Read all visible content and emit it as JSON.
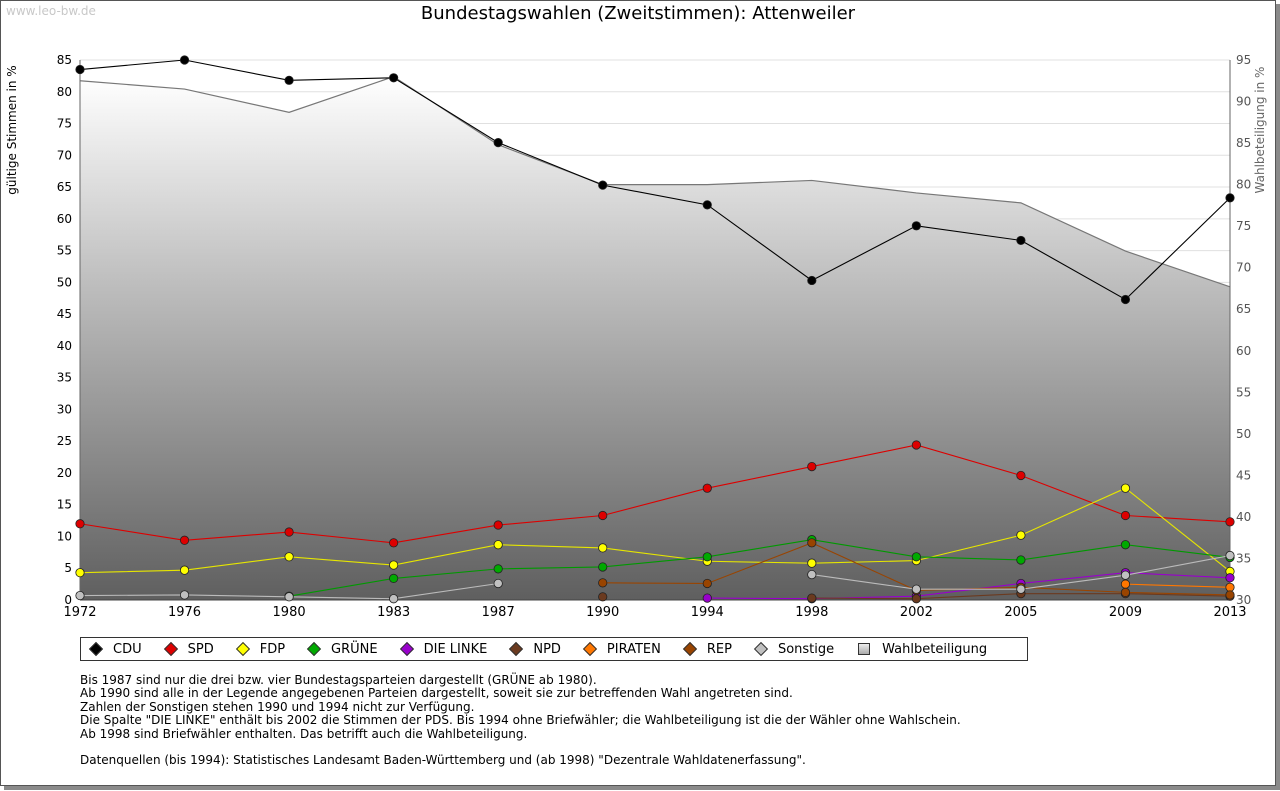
{
  "site": "www.leo-bw.de",
  "chart_data": {
    "type": "line",
    "title": "Bundestagswahlen (Zweitstimmen): Attenweiler",
    "ylabel": "gültige Stimmen in %",
    "y2label": "Wahlbeteiligung in %",
    "ylim": [
      0,
      85
    ],
    "y2lim": [
      30,
      95
    ],
    "yticks": [
      0,
      5,
      10,
      15,
      20,
      25,
      30,
      35,
      40,
      45,
      50,
      55,
      60,
      65,
      70,
      75,
      80,
      85
    ],
    "y2ticks": [
      30,
      35,
      40,
      45,
      50,
      55,
      60,
      65,
      70,
      75,
      80,
      85,
      90,
      95
    ],
    "categories": [
      "1972",
      "1976",
      "1980",
      "1983",
      "1987",
      "1990",
      "1994",
      "1998",
      "2002",
      "2005",
      "2009",
      "2013"
    ],
    "turnout": {
      "name": "Wahlbeteiligung",
      "color": "#aaaaaa",
      "values": [
        92.5,
        91.5,
        88.7,
        93.0,
        84.8,
        80.0,
        80.0,
        80.5,
        79.0,
        77.8,
        72.0,
        67.7
      ]
    },
    "series": [
      {
        "name": "CDU",
        "color": "#000000",
        "line": "#000000",
        "values": [
          83.5,
          85.0,
          81.8,
          82.2,
          72.0,
          65.3,
          62.2,
          50.3,
          58.9,
          56.6,
          47.3,
          63.3
        ]
      },
      {
        "name": "SPD",
        "color": "#dd0000",
        "line": "#dd0000",
        "values": [
          12.0,
          9.4,
          10.7,
          9.0,
          11.8,
          13.3,
          17.6,
          21.0,
          24.4,
          19.6,
          13.3,
          12.3
        ]
      },
      {
        "name": "FDP",
        "color": "#ffff00",
        "line": "#e6e600",
        "values": [
          4.3,
          4.7,
          6.8,
          5.5,
          8.7,
          8.2,
          6.1,
          5.8,
          6.2,
          10.2,
          17.6,
          4.5
        ]
      },
      {
        "name": "GRÜNE",
        "color": "#00aa00",
        "line": "#009900",
        "values": [
          null,
          null,
          0.6,
          3.4,
          4.9,
          5.2,
          6.8,
          9.5,
          6.8,
          6.3,
          8.7,
          6.7
        ]
      },
      {
        "name": "DIE LINKE",
        "color": "#9900cc",
        "line": "#9900cc",
        "values": [
          null,
          null,
          null,
          null,
          null,
          null,
          0.3,
          0.2,
          0.6,
          2.6,
          4.3,
          3.5
        ]
      },
      {
        "name": "NPD",
        "color": "#6b3a1f",
        "line": "#6b3a1f",
        "values": [
          null,
          null,
          null,
          null,
          null,
          0.5,
          null,
          0.3,
          0.2,
          1.0,
          1.0,
          0.6
        ]
      },
      {
        "name": "PIRATEN",
        "color": "#ff7700",
        "line": "#ff7700",
        "values": [
          null,
          null,
          null,
          null,
          null,
          null,
          null,
          null,
          null,
          null,
          2.5,
          2.0
        ]
      },
      {
        "name": "REP",
        "color": "#994400",
        "line": "#994400",
        "values": [
          null,
          null,
          null,
          null,
          null,
          2.7,
          2.6,
          9.0,
          1.5,
          2.0,
          1.2,
          0.8
        ]
      },
      {
        "name": "Sonstige",
        "color": "#c0c0c0",
        "line": "#bbbbbb",
        "values": [
          0.7,
          0.8,
          0.5,
          0.2,
          2.6,
          null,
          null,
          4.0,
          1.7,
          1.7,
          3.9,
          7.0
        ]
      }
    ]
  },
  "legend": {
    "items": [
      "CDU",
      "SPD",
      "FDP",
      "GRÜNE",
      "DIE LINKE",
      "NPD",
      "PIRATEN",
      "REP",
      "Sonstige",
      "Wahlbeteiligung"
    ],
    "colors": [
      "#000000",
      "#dd0000",
      "#ffff00",
      "#00aa00",
      "#9900cc",
      "#6b3a1f",
      "#ff7700",
      "#994400",
      "#c0c0c0",
      "#dddddd"
    ]
  },
  "notes": {
    "line1": "Bis 1987 sind nur die drei bzw. vier Bundestagsparteien dargestellt (GRÜNE ab 1980).",
    "line2": "Ab 1990 sind alle in der Legende angegebenen Parteien dargestellt, soweit sie zur betreffenden Wahl angetreten sind.",
    "line3": "Zahlen der Sonstigen stehen 1990 und 1994 nicht zur Verfügung.",
    "line4": "Die Spalte \"DIE LINKE\" enthält bis 2002 die Stimmen der PDS. Bis 1994 ohne Briefwähler; die Wahlbeteiligung ist die der Wähler ohne Wahlschein.",
    "line5": "Ab 1998 sind Briefwähler enthalten. Das betrifft auch die Wahlbeteiligung.",
    "line6": "Datenquellen (bis 1994): Statistisches Landesamt Baden-Württemberg und (ab 1998) \"Dezentrale Wahldatenerfassung\"."
  }
}
